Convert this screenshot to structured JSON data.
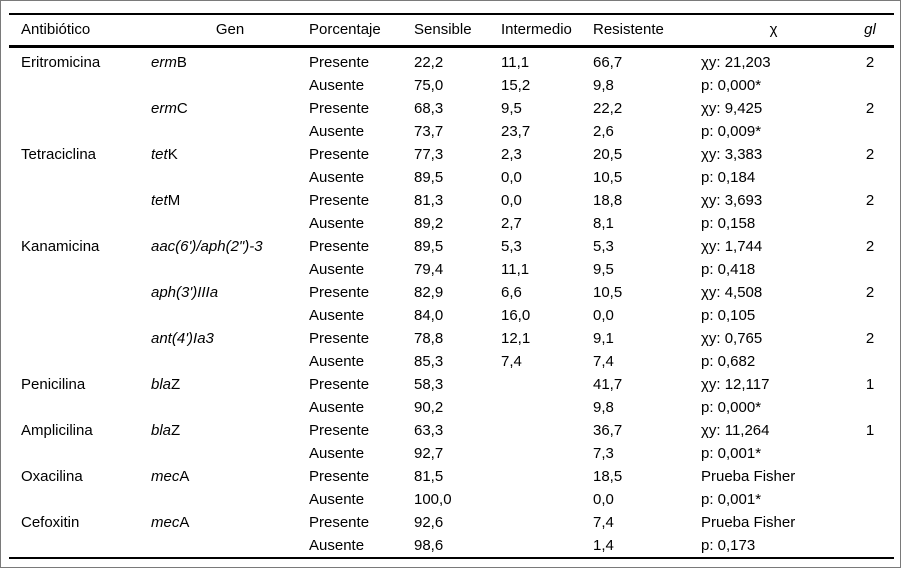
{
  "table": {
    "columns": [
      "Antibiótico",
      "Gen",
      "Porcentaje",
      "Sensible",
      "Intermedio",
      "Resistente",
      "χ",
      "gl"
    ],
    "rows": [
      {
        "antibiotico": "Eritromicina",
        "gen_italic": "erm",
        "gen_roman": "B",
        "porcentaje": "Presente",
        "sensible": "22,2",
        "intermedio": "11,1",
        "resistente": "66,7",
        "chi": "χy: 21,203",
        "gl": "2"
      },
      {
        "antibiotico": "",
        "gen_italic": "",
        "gen_roman": "",
        "porcentaje": "Ausente",
        "sensible": "75,0",
        "intermedio": "15,2",
        "resistente": "9,8",
        "chi": "p: 0,000*",
        "gl": ""
      },
      {
        "antibiotico": "",
        "gen_italic": "erm",
        "gen_roman": "C",
        "porcentaje": "Presente",
        "sensible": "68,3",
        "intermedio": "9,5",
        "resistente": "22,2",
        "chi": "χy: 9,425",
        "gl": "2"
      },
      {
        "antibiotico": "",
        "gen_italic": "",
        "gen_roman": "",
        "porcentaje": "Ausente",
        "sensible": "73,7",
        "intermedio": "23,7",
        "resistente": "2,6",
        "chi": "p: 0,009*",
        "gl": ""
      },
      {
        "antibiotico": "Tetraciclina",
        "gen_italic": "tet",
        "gen_roman": "K",
        "porcentaje": "Presente",
        "sensible": "77,3",
        "intermedio": "2,3",
        "resistente": "20,5",
        "chi": "χy: 3,383",
        "gl": "2"
      },
      {
        "antibiotico": "",
        "gen_italic": "",
        "gen_roman": "",
        "porcentaje": "Ausente",
        "sensible": "89,5",
        "intermedio": "0,0",
        "resistente": "10,5",
        "chi": "p: 0,184",
        "gl": ""
      },
      {
        "antibiotico": "",
        "gen_italic": "tet",
        "gen_roman": "M",
        "porcentaje": "Presente",
        "sensible": "81,3",
        "intermedio": "0,0",
        "resistente": "18,8",
        "chi": "χy: 3,693",
        "gl": "2"
      },
      {
        "antibiotico": "",
        "gen_italic": "",
        "gen_roman": "",
        "porcentaje": "Ausente",
        "sensible": "89,2",
        "intermedio": "2,7",
        "resistente": "8,1",
        "chi": "p: 0,158",
        "gl": ""
      },
      {
        "antibiotico": "Kanamicina",
        "gen_italic": "aac(6')/aph(2\")-3",
        "gen_roman": "",
        "porcentaje": "Presente",
        "sensible": "89,5",
        "intermedio": "5,3",
        "resistente": "5,3",
        "chi": "χy: 1,744",
        "gl": "2"
      },
      {
        "antibiotico": "",
        "gen_italic": "",
        "gen_roman": "",
        "porcentaje": "Ausente",
        "sensible": "79,4",
        "intermedio": "11,1",
        "resistente": "9,5",
        "chi": "p: 0,418",
        "gl": ""
      },
      {
        "antibiotico": "",
        "gen_italic": "aph(3')IIIa",
        "gen_roman": "",
        "porcentaje": "Presente",
        "sensible": "82,9",
        "intermedio": "6,6",
        "resistente": "10,5",
        "chi": "χy: 4,508",
        "gl": "2"
      },
      {
        "antibiotico": "",
        "gen_italic": "",
        "gen_roman": "",
        "porcentaje": "Ausente",
        "sensible": "84,0",
        "intermedio": "16,0",
        "resistente": "0,0",
        "chi": "p: 0,105",
        "gl": ""
      },
      {
        "antibiotico": "",
        "gen_italic": "ant(4')Ia3",
        "gen_roman": "",
        "porcentaje": "Presente",
        "sensible": "78,8",
        "intermedio": "12,1",
        "resistente": "9,1",
        "chi": "χy: 0,765",
        "gl": "2"
      },
      {
        "antibiotico": "",
        "gen_italic": "",
        "gen_roman": "",
        "porcentaje": "Ausente",
        "sensible": "85,3",
        "intermedio": "7,4",
        "resistente": "7,4",
        "chi": "p: 0,682",
        "gl": ""
      },
      {
        "antibiotico": "Penicilina",
        "gen_italic": "bla",
        "gen_roman": "Z",
        "porcentaje": "Presente",
        "sensible": "58,3",
        "intermedio": "",
        "resistente": "41,7",
        "chi": "χy: 12,117",
        "gl": "1"
      },
      {
        "antibiotico": "",
        "gen_italic": "",
        "gen_roman": "",
        "porcentaje": "Ausente",
        "sensible": "90,2",
        "intermedio": "",
        "resistente": "9,8",
        "chi": "p: 0,000*",
        "gl": ""
      },
      {
        "antibiotico": "Amplicilina",
        "gen_italic": "bla",
        "gen_roman": "Z",
        "porcentaje": "Presente",
        "sensible": "63,3",
        "intermedio": "",
        "resistente": "36,7",
        "chi": "χy: 11,264",
        "gl": "1"
      },
      {
        "antibiotico": "",
        "gen_italic": "",
        "gen_roman": "",
        "porcentaje": "Ausente",
        "sensible": "92,7",
        "intermedio": "",
        "resistente": "7,3",
        "chi": "p: 0,001*",
        "gl": ""
      },
      {
        "antibiotico": "Oxacilina",
        "gen_italic": "mec",
        "gen_roman": "A",
        "porcentaje": "Presente",
        "sensible": "81,5",
        "intermedio": "",
        "resistente": "18,5",
        "chi": "Prueba Fisher",
        "gl": ""
      },
      {
        "antibiotico": "",
        "gen_italic": "",
        "gen_roman": "",
        "porcentaje": "Ausente",
        "sensible": "100,0",
        "intermedio": "",
        "resistente": "0,0",
        "chi": "p: 0,001*",
        "gl": ""
      },
      {
        "antibiotico": "Cefoxitin",
        "gen_italic": "mec",
        "gen_roman": "A",
        "porcentaje": "Presente",
        "sensible": "92,6",
        "intermedio": "",
        "resistente": "7,4",
        "chi": "Prueba Fisher",
        "gl": ""
      },
      {
        "antibiotico": "",
        "gen_italic": "",
        "gen_roman": "",
        "porcentaje": "Ausente",
        "sensible": "98,6",
        "intermedio": "",
        "resistente": "1,4",
        "chi": "p: 0,173",
        "gl": ""
      }
    ]
  }
}
